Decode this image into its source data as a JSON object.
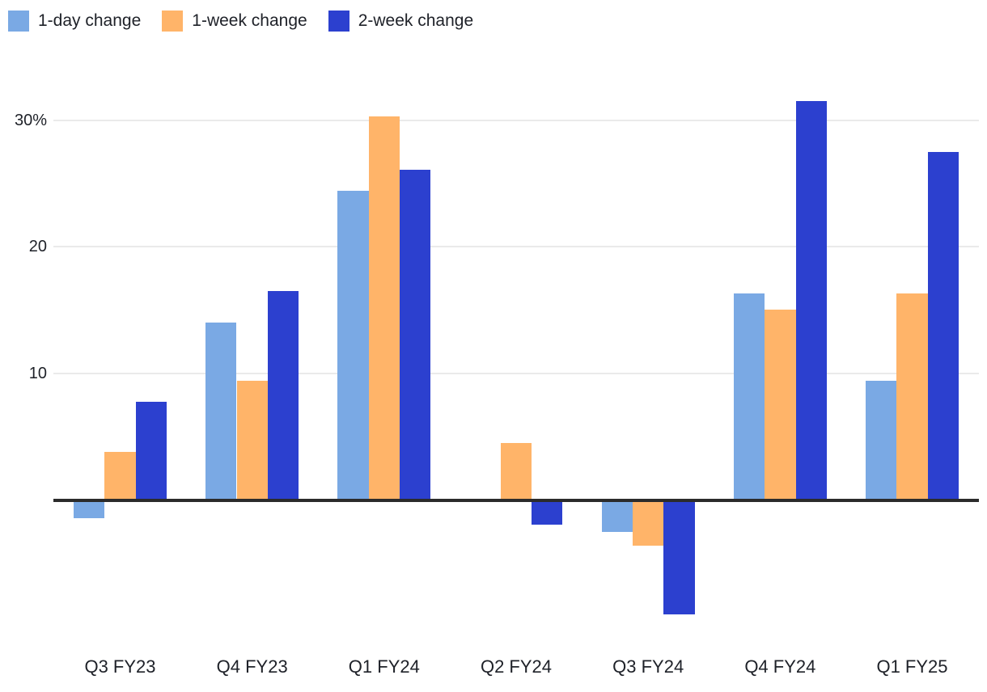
{
  "chart_data": {
    "type": "bar",
    "title": "",
    "xlabel": "",
    "ylabel": "",
    "categories": [
      "Q3 FY23",
      "Q4 FY23",
      "Q1 FY24",
      "Q2 FY24",
      "Q3 FY24",
      "Q4 FY24",
      "Q1 FY25"
    ],
    "series": [
      {
        "name": "1-day change",
        "color": "#7aa9e4",
        "values": [
          -1.4,
          14.0,
          24.4,
          0,
          -2.5,
          16.3,
          9.4
        ]
      },
      {
        "name": "1-week change",
        "color": "#ffb469",
        "values": [
          3.8,
          9.4,
          30.3,
          4.5,
          -3.6,
          15.0,
          16.3
        ]
      },
      {
        "name": "2-week change",
        "color": "#2c40cf",
        "values": [
          7.7,
          16.5,
          26.1,
          -1.9,
          -9.0,
          31.5,
          27.5
        ]
      }
    ],
    "yticks": [
      {
        "value": 10,
        "label": "10"
      },
      {
        "value": 20,
        "label": "20"
      },
      {
        "value": 30,
        "label": "30%"
      }
    ],
    "ylim": [
      -10,
      33.5
    ],
    "grid": true,
    "legend_position": "top-left",
    "unit": "percent"
  },
  "colors": {
    "axis_line": "#2b2b2b",
    "gridline": "#eaeaea",
    "text": "#1e2128",
    "background": "#ffffff"
  }
}
